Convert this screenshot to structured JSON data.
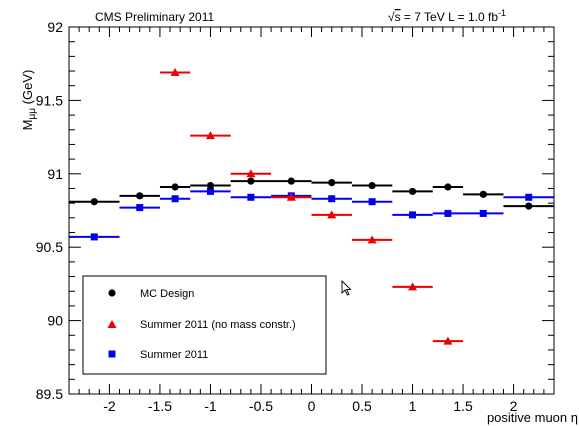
{
  "chart_data": {
    "type": "scatter",
    "header_left": "CMS Preliminary 2011",
    "header_right": {
      "sqrt_s": "s",
      "energy": " = 7 TeV  L = 1.0 fb",
      "lumi_exp": "-1"
    },
    "ylabel": {
      "main": "M",
      "sub": "μμ",
      "unit": " (GeV)"
    },
    "xlabel": "positive muon η",
    "xlim": [
      -2.4,
      2.4
    ],
    "ylim": [
      89.5,
      92.0
    ],
    "xticks": [
      -2,
      -1.5,
      -1,
      -0.5,
      0,
      0.5,
      1,
      1.5,
      2
    ],
    "xtick_labels": [
      "-2",
      "-1.5",
      "-1",
      "-0.5",
      "0",
      "0.5",
      "1",
      "1.5",
      "2"
    ],
    "yticks": [
      89.5,
      90,
      90.5,
      91,
      91.5,
      92
    ],
    "ytick_labels": [
      "89.5",
      "90",
      "90.5",
      "91",
      "91.5",
      "92"
    ],
    "bin_edges": [
      -2.4,
      -1.9,
      -1.5,
      -1.2,
      -0.8,
      -0.4,
      0.0,
      0.4,
      0.8,
      1.2,
      1.5,
      1.9,
      2.4
    ],
    "series": [
      {
        "name": "MC Design",
        "marker": "circle",
        "color": "#000000",
        "values": [
          90.81,
          90.85,
          90.91,
          90.92,
          90.95,
          90.95,
          90.94,
          90.92,
          90.88,
          90.91,
          90.86,
          90.78
        ]
      },
      {
        "name": "Summer 2011 (no mass constr.)",
        "marker": "triangle",
        "color": "#ee0000",
        "values": [
          null,
          null,
          91.69,
          91.26,
          91.0,
          90.84,
          90.72,
          90.55,
          90.23,
          89.86,
          null,
          null
        ]
      },
      {
        "name": "Summer 2011",
        "marker": "square",
        "color": "#0000ee",
        "values": [
          90.57,
          90.77,
          90.83,
          90.88,
          90.84,
          90.85,
          90.83,
          90.81,
          90.72,
          90.73,
          90.73,
          90.84
        ]
      }
    ],
    "legend_position": "bottom-left"
  }
}
